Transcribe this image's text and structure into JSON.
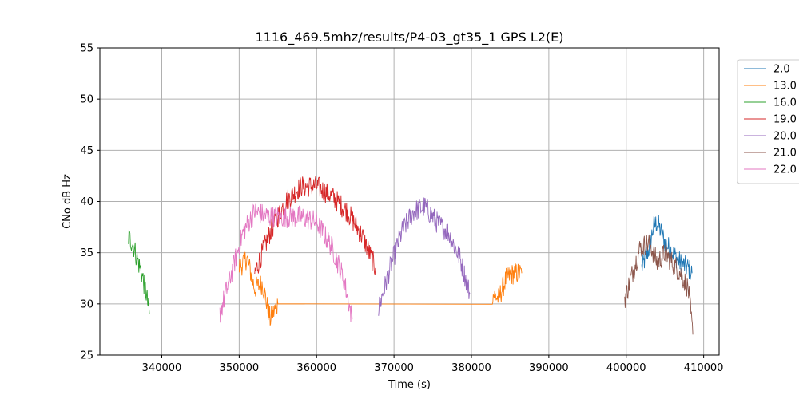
{
  "chart_data": {
    "type": "line",
    "title": "1116_469.5mhz/results/P4-03_gt35_1 GPS L2(E)",
    "xlabel": "Time (s)",
    "ylabel": "CNo dB Hz",
    "xlim": [
      332000,
      412000
    ],
    "ylim": [
      25,
      55
    ],
    "xticks": [
      340000,
      350000,
      360000,
      370000,
      380000,
      390000,
      400000,
      410000
    ],
    "yticks": [
      25,
      30,
      35,
      40,
      45,
      50,
      55
    ],
    "grid": true,
    "legend_position": "outside-top-right",
    "series": [
      {
        "name": "2.0",
        "color": "#1f77b4",
        "x": [
          402000,
          403000,
          403500,
          404000,
          404500,
          405000,
          406000,
          407000,
          408000,
          408500
        ],
        "y": [
          33.5,
          35.5,
          37.5,
          38.0,
          37.0,
          36.0,
          35.0,
          34.0,
          33.5,
          33.0
        ]
      },
      {
        "name": "13.0",
        "color": "#ff7f0e",
        "x": [
          350000,
          351000,
          352000,
          353000,
          354000,
          355000,
          382700,
          383500,
          384500,
          385500,
          386500
        ],
        "y": [
          33.5,
          34.5,
          31.5,
          32.0,
          28.5,
          30.0,
          31.0,
          30.5,
          32.5,
          33.0,
          33.0
        ]
      },
      {
        "name": "16.0",
        "color": "#2ca02c",
        "x": [
          335700,
          336200,
          336800,
          337400,
          338000,
          338400
        ],
        "y": [
          36.5,
          36.0,
          34.5,
          33.0,
          31.0,
          29.0
        ]
      },
      {
        "name": "19.0",
        "color": "#d62728",
        "x": [
          352000,
          354000,
          356000,
          358000,
          360000,
          362000,
          364000,
          366000,
          367600
        ],
        "y": [
          33.0,
          37.0,
          40.0,
          41.5,
          41.5,
          40.5,
          39.0,
          36.5,
          33.5
        ]
      },
      {
        "name": "20.0",
        "color": "#9467bd",
        "x": [
          368000,
          369500,
          371000,
          372500,
          374000,
          375500,
          377000,
          378500,
          379800
        ],
        "y": [
          29.5,
          33.5,
          37.0,
          39.0,
          39.5,
          38.0,
          37.0,
          34.5,
          31.0
        ]
      },
      {
        "name": "21.0",
        "color": "#8c564b",
        "x": [
          399800,
          400800,
          401800,
          403000,
          404000,
          405000,
          406000,
          407000,
          408000,
          408600
        ],
        "y": [
          30.5,
          33.0,
          35.5,
          36.0,
          34.0,
          35.0,
          34.0,
          33.0,
          31.5,
          27.0
        ]
      },
      {
        "name": "22.0",
        "color": "#e377c2",
        "x": [
          347500,
          349000,
          350500,
          352000,
          354000,
          356000,
          358000,
          360000,
          362000,
          363500,
          364600
        ],
        "y": [
          29.0,
          33.0,
          37.0,
          39.0,
          38.5,
          38.5,
          38.5,
          38.0,
          35.5,
          32.5,
          28.5
        ]
      }
    ]
  }
}
